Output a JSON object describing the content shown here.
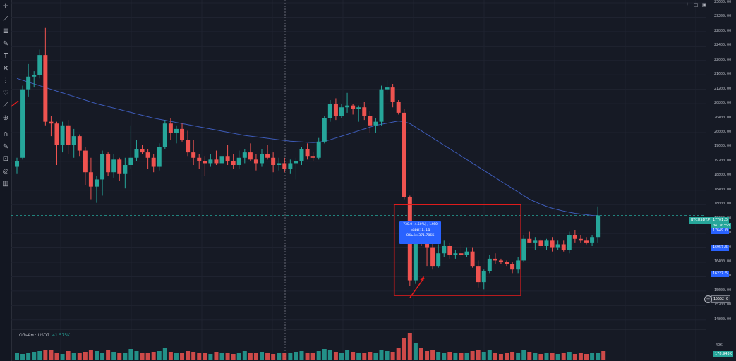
{
  "toolbar": {
    "tools": [
      {
        "name": "crosshair-icon",
        "glyph": "✛"
      },
      {
        "name": "trend-line-icon",
        "glyph": "⟋"
      },
      {
        "name": "horizontal-lines-icon",
        "glyph": "≣"
      },
      {
        "name": "brush-icon",
        "glyph": "✎"
      },
      {
        "name": "text-icon",
        "glyph": "T"
      },
      {
        "name": "pattern-icon",
        "glyph": "✕"
      },
      {
        "name": "forecast-icon",
        "glyph": "⋮"
      },
      {
        "name": "heart-icon",
        "glyph": "♡"
      },
      {
        "name": "ruler-icon",
        "glyph": "⟋"
      },
      {
        "name": "zoom-icon",
        "glyph": "⊕"
      },
      {
        "name": "magnet-icon",
        "glyph": "∩"
      },
      {
        "name": "lock-drawing-icon",
        "glyph": "✎"
      },
      {
        "name": "lock-icon",
        "glyph": "⊡"
      },
      {
        "name": "eye-icon",
        "glyph": "◎"
      },
      {
        "name": "trash-icon",
        "glyph": "▥"
      }
    ]
  },
  "topbar": {
    "buttons": [
      {
        "name": "layout-icon",
        "glyph": "⫶"
      },
      {
        "name": "window-icon",
        "glyph": "□"
      },
      {
        "name": "fullscreen-icon",
        "glyph": "▣"
      }
    ]
  },
  "symbol": {
    "name": "BTCUSDT.P",
    "price": "17701.5",
    "countdown": "04:30:53"
  },
  "price_labels": {
    "level_17649": "17649.0",
    "level_16957": "16957.5",
    "level_16227": "16227.5",
    "level_15552": "15552.0"
  },
  "tooltip": {
    "line1": "730.0 (4.50%) , 1460",
    "line2": "Бары: 1, 1д",
    "line3": "Объём 371.786K"
  },
  "volume": {
    "title": "Объём · USDT",
    "value": "41.575K",
    "axis_label": "40K",
    "badge": "178.943K"
  },
  "colors": {
    "up": "#26a69a",
    "down": "#ef5350",
    "ma": "#3d5bb8",
    "box": "#e51c1c",
    "label_blue": "#2962ff"
  },
  "chart_data": {
    "type": "candlestick",
    "title": "",
    "series_name": "BTCUSDT.P",
    "timeframe": "1д",
    "ylim": [
      14600,
      23600
    ],
    "y_ticks": [
      14800,
      15200,
      15600,
      16000,
      16400,
      16800,
      17200,
      17600,
      18000,
      18400,
      18800,
      19200,
      19600,
      20000,
      20400,
      20800,
      21200,
      21600,
      22000,
      22400,
      22800,
      23200,
      23600
    ],
    "candles": [
      {
        "o": 19050,
        "h": 19300,
        "l": 18850,
        "c": 19200
      },
      {
        "o": 19300,
        "h": 21300,
        "l": 19250,
        "c": 21200
      },
      {
        "o": 21200,
        "h": 21900,
        "l": 21000,
        "c": 21550
      },
      {
        "o": 21550,
        "h": 21700,
        "l": 21250,
        "c": 21600
      },
      {
        "o": 21600,
        "h": 22300,
        "l": 21500,
        "c": 22150
      },
      {
        "o": 22150,
        "h": 22900,
        "l": 20200,
        "c": 20300
      },
      {
        "o": 20300,
        "h": 20450,
        "l": 19900,
        "c": 20250
      },
      {
        "o": 20250,
        "h": 20300,
        "l": 19100,
        "c": 19650
      },
      {
        "o": 19650,
        "h": 20300,
        "l": 19450,
        "c": 20200
      },
      {
        "o": 20200,
        "h": 20350,
        "l": 19400,
        "c": 19650
      },
      {
        "o": 19650,
        "h": 20100,
        "l": 19300,
        "c": 19900
      },
      {
        "o": 19900,
        "h": 19950,
        "l": 19350,
        "c": 19500
      },
      {
        "o": 19500,
        "h": 19600,
        "l": 18550,
        "c": 18900
      },
      {
        "o": 18900,
        "h": 19300,
        "l": 18150,
        "c": 18500
      },
      {
        "o": 18500,
        "h": 18800,
        "l": 18050,
        "c": 18700
      },
      {
        "o": 18700,
        "h": 19500,
        "l": 18250,
        "c": 19400
      },
      {
        "o": 19400,
        "h": 19450,
        "l": 18800,
        "c": 18900
      },
      {
        "o": 18900,
        "h": 19400,
        "l": 18750,
        "c": 19250
      },
      {
        "o": 19250,
        "h": 19300,
        "l": 18650,
        "c": 18850
      },
      {
        "o": 18850,
        "h": 19300,
        "l": 18450,
        "c": 19100
      },
      {
        "o": 19100,
        "h": 20200,
        "l": 19000,
        "c": 19300
      },
      {
        "o": 19300,
        "h": 19800,
        "l": 19200,
        "c": 19550
      },
      {
        "o": 19550,
        "h": 19650,
        "l": 19400,
        "c": 19450
      },
      {
        "o": 19450,
        "h": 19550,
        "l": 19000,
        "c": 19300
      },
      {
        "o": 19300,
        "h": 19400,
        "l": 18900,
        "c": 19050
      },
      {
        "o": 19050,
        "h": 19700,
        "l": 18950,
        "c": 19600
      },
      {
        "o": 19600,
        "h": 20350,
        "l": 19550,
        "c": 20250
      },
      {
        "o": 20250,
        "h": 20400,
        "l": 19800,
        "c": 20000
      },
      {
        "o": 20000,
        "h": 20200,
        "l": 19700,
        "c": 20100
      },
      {
        "o": 20100,
        "h": 20250,
        "l": 19750,
        "c": 19800
      },
      {
        "o": 19800,
        "h": 20050,
        "l": 19350,
        "c": 19450
      },
      {
        "o": 19450,
        "h": 19800,
        "l": 19100,
        "c": 19300
      },
      {
        "o": 19300,
        "h": 19400,
        "l": 19000,
        "c": 19200
      },
      {
        "o": 19200,
        "h": 19350,
        "l": 18800,
        "c": 19150
      },
      {
        "o": 19150,
        "h": 19400,
        "l": 19050,
        "c": 19250
      },
      {
        "o": 19250,
        "h": 19500,
        "l": 19100,
        "c": 19150
      },
      {
        "o": 19150,
        "h": 19400,
        "l": 18950,
        "c": 19350
      },
      {
        "o": 19350,
        "h": 19650,
        "l": 19100,
        "c": 19200
      },
      {
        "o": 19200,
        "h": 19400,
        "l": 19000,
        "c": 19100
      },
      {
        "o": 19100,
        "h": 19500,
        "l": 19000,
        "c": 19300
      },
      {
        "o": 19300,
        "h": 19550,
        "l": 19150,
        "c": 19450
      },
      {
        "o": 19450,
        "h": 19700,
        "l": 19200,
        "c": 19250
      },
      {
        "o": 19250,
        "h": 19400,
        "l": 18950,
        "c": 19150
      },
      {
        "o": 19150,
        "h": 19550,
        "l": 19050,
        "c": 19400
      },
      {
        "o": 19400,
        "h": 19650,
        "l": 19250,
        "c": 19300
      },
      {
        "o": 19300,
        "h": 19450,
        "l": 18900,
        "c": 19100
      },
      {
        "o": 19100,
        "h": 19300,
        "l": 18950,
        "c": 19150
      },
      {
        "o": 19150,
        "h": 19300,
        "l": 18900,
        "c": 19000
      },
      {
        "o": 19000,
        "h": 19250,
        "l": 18850,
        "c": 19150
      },
      {
        "o": 19150,
        "h": 19300,
        "l": 18700,
        "c": 19200
      },
      {
        "o": 19200,
        "h": 19600,
        "l": 19100,
        "c": 19550
      },
      {
        "o": 19550,
        "h": 19700,
        "l": 19250,
        "c": 19350
      },
      {
        "o": 19350,
        "h": 19450,
        "l": 19200,
        "c": 19300
      },
      {
        "o": 19300,
        "h": 19850,
        "l": 19250,
        "c": 19750
      },
      {
        "o": 19750,
        "h": 20450,
        "l": 19700,
        "c": 20400
      },
      {
        "o": 20400,
        "h": 20900,
        "l": 20300,
        "c": 20800
      },
      {
        "o": 20800,
        "h": 20950,
        "l": 20350,
        "c": 20450
      },
      {
        "o": 20450,
        "h": 20800,
        "l": 20400,
        "c": 20700
      },
      {
        "o": 20700,
        "h": 21100,
        "l": 20550,
        "c": 20750
      },
      {
        "o": 20750,
        "h": 20800,
        "l": 20500,
        "c": 20650
      },
      {
        "o": 20650,
        "h": 20750,
        "l": 20300,
        "c": 20700
      },
      {
        "o": 20700,
        "h": 20850,
        "l": 20350,
        "c": 20450
      },
      {
        "o": 20450,
        "h": 20600,
        "l": 20000,
        "c": 20200
      },
      {
        "o": 20200,
        "h": 20400,
        "l": 20000,
        "c": 20300
      },
      {
        "o": 20300,
        "h": 21300,
        "l": 20200,
        "c": 21200
      },
      {
        "o": 21200,
        "h": 21450,
        "l": 21050,
        "c": 21250
      },
      {
        "o": 21250,
        "h": 21350,
        "l": 20700,
        "c": 20850
      },
      {
        "o": 20850,
        "h": 20900,
        "l": 20500,
        "c": 20550
      },
      {
        "o": 20550,
        "h": 20650,
        "l": 18150,
        "c": 18200
      },
      {
        "o": 18200,
        "h": 18250,
        "l": 15750,
        "c": 15900
      },
      {
        "o": 15900,
        "h": 17450,
        "l": 15800,
        "c": 17200
      },
      {
        "o": 17200,
        "h": 17300,
        "l": 16850,
        "c": 16950
      },
      {
        "o": 16950,
        "h": 17100,
        "l": 16300,
        "c": 16800
      },
      {
        "o": 16800,
        "h": 17000,
        "l": 16200,
        "c": 16300
      },
      {
        "o": 16300,
        "h": 16900,
        "l": 16250,
        "c": 16650
      },
      {
        "o": 16650,
        "h": 17000,
        "l": 16550,
        "c": 16850
      },
      {
        "o": 16850,
        "h": 16950,
        "l": 16500,
        "c": 16600
      },
      {
        "o": 16600,
        "h": 16750,
        "l": 16500,
        "c": 16650
      },
      {
        "o": 16650,
        "h": 16900,
        "l": 16550,
        "c": 16600
      },
      {
        "o": 16600,
        "h": 16800,
        "l": 16550,
        "c": 16700
      },
      {
        "o": 16700,
        "h": 16800,
        "l": 16250,
        "c": 16300
      },
      {
        "o": 16300,
        "h": 16450,
        "l": 15700,
        "c": 15850
      },
      {
        "o": 15850,
        "h": 16200,
        "l": 15650,
        "c": 16150
      },
      {
        "o": 16150,
        "h": 16600,
        "l": 16100,
        "c": 16500
      },
      {
        "o": 16500,
        "h": 16650,
        "l": 16350,
        "c": 16450
      },
      {
        "o": 16450,
        "h": 16500,
        "l": 16350,
        "c": 16400
      },
      {
        "o": 16400,
        "h": 16450,
        "l": 16300,
        "c": 16350
      },
      {
        "o": 16350,
        "h": 16400,
        "l": 16100,
        "c": 16200
      },
      {
        "o": 16200,
        "h": 16550,
        "l": 16100,
        "c": 16450
      },
      {
        "o": 16450,
        "h": 17150,
        "l": 16400,
        "c": 17050
      },
      {
        "o": 17050,
        "h": 17250,
        "l": 16950,
        "c": 16950
      },
      {
        "o": 16950,
        "h": 17100,
        "l": 16750,
        "c": 17000
      },
      {
        "o": 17000,
        "h": 17050,
        "l": 16800,
        "c": 16850
      },
      {
        "o": 16850,
        "h": 17050,
        "l": 16750,
        "c": 17000
      },
      {
        "o": 17000,
        "h": 17100,
        "l": 16700,
        "c": 16800
      },
      {
        "o": 16800,
        "h": 17000,
        "l": 16750,
        "c": 16900
      },
      {
        "o": 16900,
        "h": 17000,
        "l": 16700,
        "c": 16750
      },
      {
        "o": 16750,
        "h": 17250,
        "l": 16650,
        "c": 17150
      },
      {
        "o": 17150,
        "h": 17300,
        "l": 16950,
        "c": 17050
      },
      {
        "o": 17050,
        "h": 17150,
        "l": 16950,
        "c": 17000
      },
      {
        "o": 17000,
        "h": 17100,
        "l": 16900,
        "c": 16950
      },
      {
        "o": 16950,
        "h": 17150,
        "l": 16850,
        "c": 17100
      },
      {
        "o": 17100,
        "h": 17950,
        "l": 16950,
        "c": 17701.5
      }
    ],
    "moving_average": [
      21500,
      21450,
      21400,
      21350,
      21300,
      21250,
      21200,
      21150,
      21100,
      21050,
      21000,
      20950,
      20900,
      20850,
      20800,
      20760,
      20720,
      20680,
      20640,
      20600,
      20560,
      20520,
      20480,
      20440,
      20400,
      20370,
      20340,
      20310,
      20280,
      20250,
      20220,
      20190,
      20160,
      20130,
      20100,
      20070,
      20040,
      20010,
      19980,
      19950,
      19920,
      19900,
      19880,
      19860,
      19840,
      19820,
      19800,
      19780,
      19760,
      19750,
      19740,
      19730,
      19720,
      19730,
      19760,
      19800,
      19850,
      19900,
      19950,
      20000,
      20050,
      20100,
      20150,
      20200,
      20230,
      20260,
      20290,
      20320,
      20300,
      20250,
      20150,
      20050,
      19950,
      19850,
      19750,
      19650,
      19550,
      19450,
      19350,
      19250,
      19150,
      19050,
      18950,
      18850,
      18750,
      18650,
      18550,
      18450,
      18350,
      18250,
      18150,
      18080,
      18010,
      17950,
      17900,
      17860,
      17820,
      17790,
      17760,
      17740,
      17720,
      17700,
      17690,
      17680
    ],
    "volumes": [
      50,
      40,
      45,
      55,
      60,
      70,
      65,
      50,
      40,
      60,
      45,
      50,
      55,
      70,
      60,
      50,
      65,
      55,
      45,
      50,
      75,
      60,
      45,
      50,
      55,
      60,
      80,
      55,
      50,
      45,
      60,
      55,
      50,
      45,
      40,
      55,
      50,
      45,
      40,
      45,
      60,
      50,
      45,
      55,
      50,
      40,
      45,
      50,
      45,
      55,
      60,
      50,
      45,
      60,
      75,
      70,
      55,
      50,
      65,
      55,
      50,
      45,
      55,
      50,
      70,
      60,
      55,
      80,
      150,
      190,
      120,
      80,
      60,
      70,
      55,
      45,
      55,
      50,
      45,
      50,
      60,
      70,
      55,
      65,
      45,
      40,
      45,
      55,
      50,
      70,
      55,
      45,
      40,
      45,
      50,
      40,
      45,
      55,
      40,
      45,
      40,
      45,
      50,
      60
    ],
    "annotation": {
      "type": "rectangle",
      "x_range": [
        67,
        88
      ],
      "y_range": [
        15480,
        18000
      ]
    },
    "h_lines": [
      17701.5,
      15552
    ]
  }
}
